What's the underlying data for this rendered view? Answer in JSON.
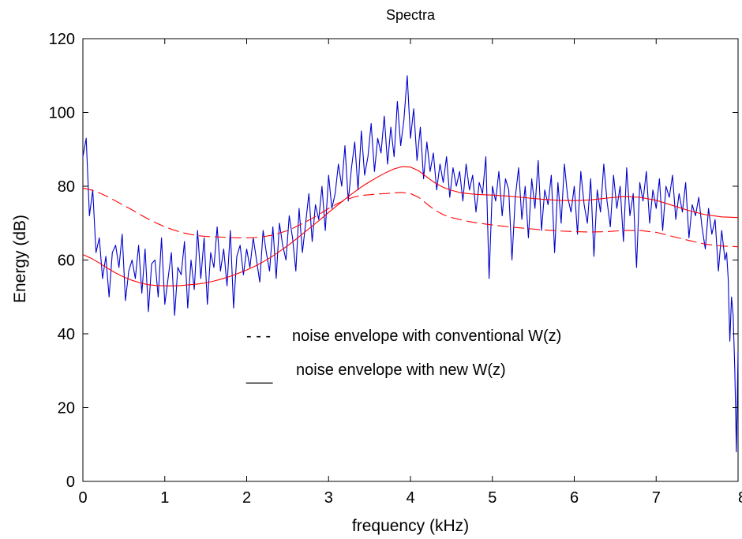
{
  "chart_data": {
    "type": "line",
    "title": "Spectra",
    "xlabel": "frequency (kHz)",
    "ylabel": "Energy (dB)",
    "xlim": [
      0,
      8
    ],
    "ylim": [
      0,
      120
    ],
    "xticks": [
      0,
      1,
      2,
      3,
      4,
      5,
      6,
      7,
      8
    ],
    "yticks": [
      0,
      20,
      40,
      60,
      80,
      100,
      120
    ],
    "grid": false,
    "legend_placement": "center",
    "annotations": [
      {
        "marker": "- - -",
        "text": "noise envelope with conventional W(z)"
      },
      {
        "marker": "___",
        "text": "noise envelope with new W(z)"
      }
    ],
    "series": [
      {
        "color": "#0000cc",
        "style": "solid",
        "x": [
          0.0,
          0.04,
          0.08,
          0.12,
          0.16,
          0.2,
          0.24,
          0.28,
          0.32,
          0.36,
          0.4,
          0.44,
          0.48,
          0.52,
          0.56,
          0.6,
          0.64,
          0.68,
          0.72,
          0.76,
          0.8,
          0.84,
          0.88,
          0.92,
          0.96,
          1.0,
          1.04,
          1.08,
          1.12,
          1.16,
          1.2,
          1.24,
          1.28,
          1.32,
          1.36,
          1.4,
          1.44,
          1.48,
          1.52,
          1.56,
          1.6,
          1.64,
          1.68,
          1.72,
          1.76,
          1.8,
          1.84,
          1.88,
          1.92,
          1.96,
          2.0,
          2.04,
          2.08,
          2.12,
          2.16,
          2.2,
          2.24,
          2.28,
          2.32,
          2.36,
          2.4,
          2.44,
          2.48,
          2.52,
          2.56,
          2.6,
          2.64,
          2.68,
          2.72,
          2.76,
          2.8,
          2.84,
          2.88,
          2.92,
          2.96,
          3.0,
          3.04,
          3.08,
          3.12,
          3.16,
          3.2,
          3.24,
          3.28,
          3.32,
          3.36,
          3.4,
          3.44,
          3.48,
          3.52,
          3.56,
          3.6,
          3.64,
          3.68,
          3.72,
          3.76,
          3.8,
          3.84,
          3.88,
          3.92,
          3.96,
          4.0,
          4.04,
          4.08,
          4.12,
          4.16,
          4.2,
          4.24,
          4.28,
          4.32,
          4.36,
          4.4,
          4.44,
          4.48,
          4.52,
          4.56,
          4.6,
          4.64,
          4.68,
          4.72,
          4.76,
          4.8,
          4.84,
          4.88,
          4.92,
          4.96,
          5.0,
          5.04,
          5.08,
          5.12,
          5.16,
          5.2,
          5.24,
          5.28,
          5.32,
          5.36,
          5.4,
          5.44,
          5.48,
          5.52,
          5.56,
          5.6,
          5.64,
          5.68,
          5.72,
          5.76,
          5.8,
          5.84,
          5.88,
          5.92,
          5.96,
          6.0,
          6.04,
          6.08,
          6.12,
          6.16,
          6.2,
          6.24,
          6.28,
          6.32,
          6.36,
          6.4,
          6.44,
          6.48,
          6.52,
          6.56,
          6.6,
          6.64,
          6.68,
          6.72,
          6.76,
          6.8,
          6.84,
          6.88,
          6.92,
          6.96,
          7.0,
          7.04,
          7.08,
          7.12,
          7.16,
          7.2,
          7.24,
          7.28,
          7.32,
          7.36,
          7.4,
          7.44,
          7.48,
          7.52,
          7.56,
          7.6,
          7.64,
          7.68,
          7.72,
          7.76,
          7.8,
          7.84,
          7.86,
          7.88,
          7.9,
          7.92,
          7.94,
          7.96,
          7.98,
          8.0
        ],
        "y": [
          88,
          93,
          72,
          79,
          62,
          66,
          55,
          61,
          50,
          62,
          64,
          58,
          67,
          49,
          57,
          60,
          55,
          64,
          51,
          63,
          46,
          59,
          60,
          50,
          66,
          48,
          55,
          62,
          45,
          58,
          56,
          65,
          47,
          60,
          52,
          68,
          55,
          66,
          48,
          62,
          58,
          69,
          57,
          63,
          53,
          68,
          47,
          61,
          64,
          56,
          63,
          58,
          66,
          60,
          54,
          68,
          62,
          57,
          69,
          55,
          70,
          64,
          60,
          72,
          66,
          57,
          74,
          62,
          70,
          78,
          65,
          75,
          71,
          80,
          68,
          83,
          74,
          78,
          86,
          80,
          91,
          76,
          85,
          92,
          79,
          95,
          83,
          88,
          97,
          84,
          93,
          89,
          99,
          86,
          96,
          88,
          103,
          91,
          98,
          110,
          93,
          101,
          87,
          96,
          82,
          92,
          84,
          89,
          79,
          86,
          81,
          88,
          77,
          85,
          80,
          84,
          76,
          86,
          79,
          83,
          73,
          81,
          78,
          88,
          55,
          80,
          76,
          84,
          72,
          82,
          79,
          60,
          77,
          85,
          71,
          80,
          66,
          82,
          74,
          87,
          68,
          79,
          75,
          83,
          62,
          81,
          70,
          86,
          77,
          73,
          80,
          67,
          84,
          75,
          70,
          82,
          61,
          79,
          73,
          86,
          76,
          69,
          83,
          74,
          80,
          65,
          85,
          72,
          78,
          58,
          81,
          76,
          84,
          70,
          79,
          74,
          82,
          68,
          80,
          77,
          83,
          71,
          78,
          73,
          81,
          66,
          75,
          72,
          77,
          69,
          63,
          74,
          67,
          71,
          57,
          68,
          60,
          62,
          55,
          38,
          50,
          45,
          30,
          8,
          35
        ]
      },
      {
        "color": "#ff0000",
        "style": "dashed",
        "x": [
          0.0,
          0.1,
          0.2,
          0.3,
          0.4,
          0.5,
          0.6,
          0.7,
          0.8,
          0.9,
          1.0,
          1.1,
          1.2,
          1.3,
          1.4,
          1.5,
          1.6,
          1.7,
          1.8,
          1.9,
          2.0,
          2.1,
          2.2,
          2.3,
          2.4,
          2.5,
          2.6,
          2.7,
          2.8,
          2.9,
          3.0,
          3.1,
          3.2,
          3.3,
          3.4,
          3.5,
          3.6,
          3.7,
          3.8,
          3.9,
          4.0,
          4.1,
          4.2,
          4.3,
          4.4,
          4.5,
          4.6,
          4.7,
          4.8,
          4.9,
          5.0,
          5.2,
          5.4,
          5.6,
          5.8,
          6.0,
          6.2,
          6.4,
          6.6,
          6.8,
          7.0,
          7.2,
          7.4,
          7.6,
          7.8,
          8.0
        ],
        "y": [
          79.5,
          79,
          78.2,
          77.2,
          76,
          74.8,
          73.6,
          72.3,
          71.1,
          70,
          69,
          68.2,
          67.5,
          67,
          66.6,
          66.4,
          66.3,
          66.2,
          66.1,
          66,
          66,
          66.1,
          66.3,
          66.7,
          67.3,
          68,
          69,
          70.1,
          71.3,
          72.6,
          74,
          75.2,
          76.2,
          77,
          77.5,
          77.7,
          77.9,
          78,
          78.2,
          78.3,
          78,
          77,
          75.2,
          73.5,
          72.3,
          71.5,
          71,
          70.5,
          70.1,
          69.8,
          69.5,
          69,
          68.6,
          68.2,
          67.9,
          67.7,
          67.6,
          67.7,
          68,
          68,
          67.5,
          66.4,
          65.3,
          64.3,
          63.8,
          63.6
        ]
      },
      {
        "color": "#ff0000",
        "style": "solid",
        "x": [
          0.0,
          0.1,
          0.2,
          0.3,
          0.4,
          0.5,
          0.6,
          0.7,
          0.8,
          0.9,
          1.0,
          1.1,
          1.2,
          1.3,
          1.4,
          1.5,
          1.6,
          1.7,
          1.8,
          1.9,
          2.0,
          2.1,
          2.2,
          2.3,
          2.4,
          2.5,
          2.6,
          2.7,
          2.8,
          2.9,
          3.0,
          3.1,
          3.2,
          3.3,
          3.4,
          3.5,
          3.6,
          3.7,
          3.8,
          3.9,
          4.0,
          4.1,
          4.2,
          4.3,
          4.4,
          4.5,
          4.6,
          4.7,
          4.8,
          4.9,
          5.0,
          5.2,
          5.4,
          5.6,
          5.8,
          6.0,
          6.2,
          6.4,
          6.6,
          6.8,
          7.0,
          7.2,
          7.4,
          7.6,
          7.8,
          8.0
        ],
        "y": [
          61.5,
          60.5,
          59.2,
          57.8,
          56.5,
          55.4,
          54.5,
          53.8,
          53.3,
          53.1,
          53,
          53,
          53.1,
          53.3,
          53.5,
          53.8,
          54.3,
          54.9,
          55.6,
          56.4,
          57.3,
          58.3,
          59.5,
          60.8,
          62.3,
          63.9,
          65.6,
          67.4,
          69.2,
          71,
          72.9,
          74.7,
          76.5,
          78.2,
          79.8,
          81.2,
          82.5,
          83.7,
          84.7,
          85.3,
          85.2,
          84.2,
          82.5,
          80.9,
          79.7,
          78.9,
          78.3,
          78,
          77.8,
          77.7,
          77.6,
          77.3,
          76.9,
          76.5,
          76.2,
          76.1,
          76.3,
          76.8,
          77.2,
          77,
          76.2,
          74.8,
          73.4,
          72.3,
          71.7,
          71.5
        ]
      }
    ]
  }
}
